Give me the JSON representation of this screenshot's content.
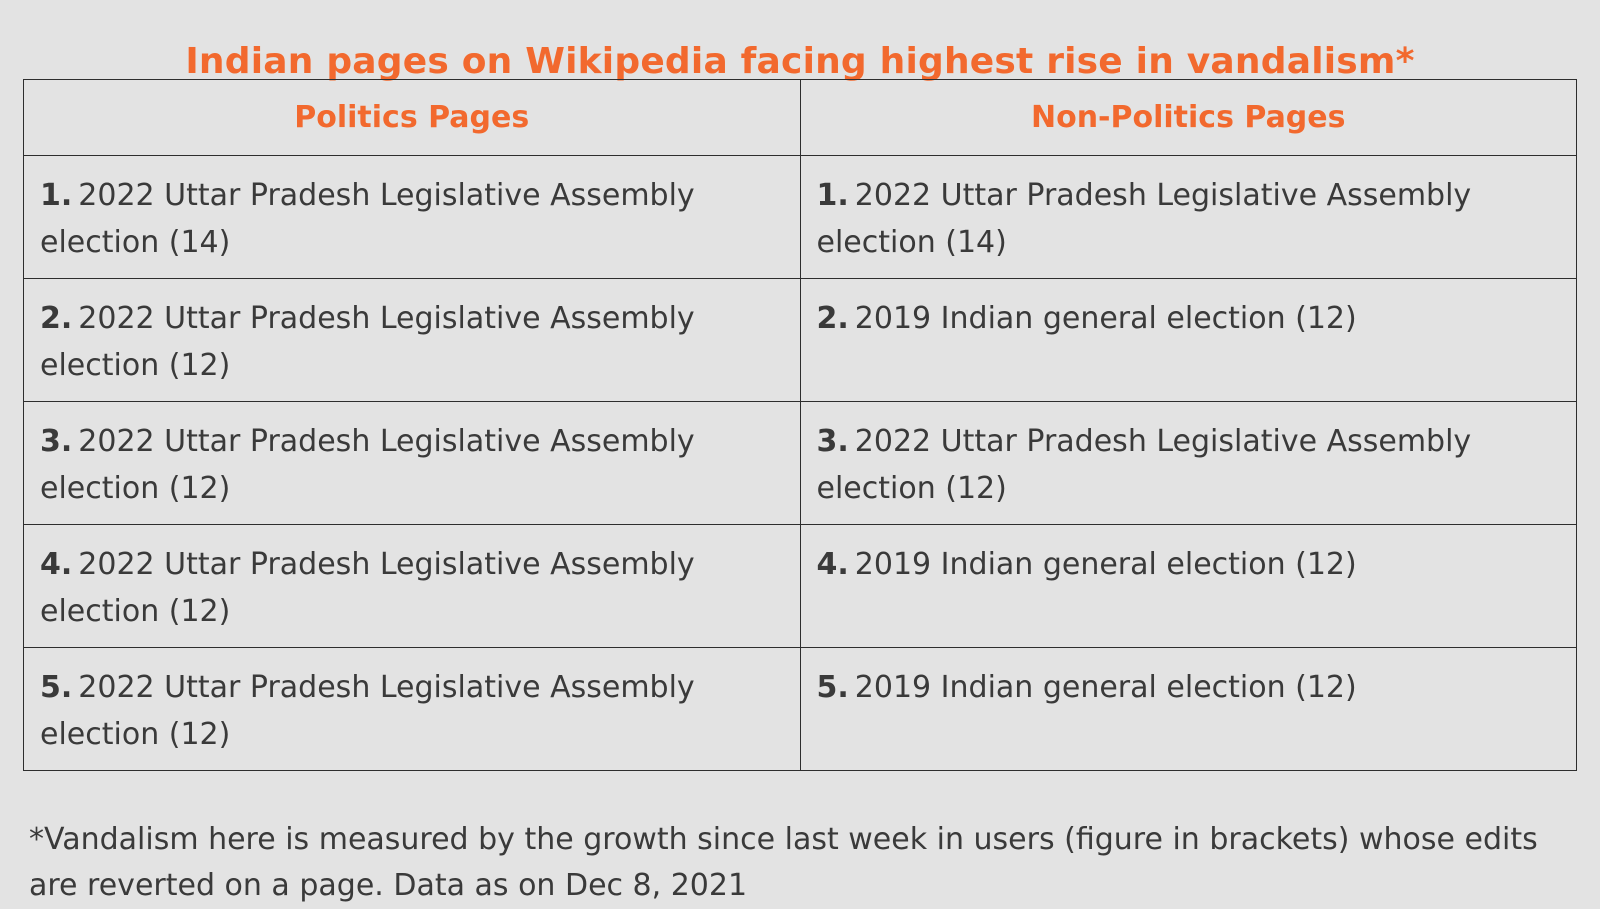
{
  "title": "Indian pages on Wikipedia facing highest rise in vandalism*",
  "table": {
    "headers": {
      "politics": "Politics Pages",
      "non_politics": "Non-Politics Pages"
    },
    "rows": [
      {
        "politics": {
          "rank": "1.",
          "text": "2022 Uttar Pradesh Legislative Assembly election (14)"
        },
        "non_politics": {
          "rank": "1.",
          "text": "2022 Uttar Pradesh Legislative Assembly election (14)"
        }
      },
      {
        "politics": {
          "rank": "2.",
          "text": "2022 Uttar Pradesh Legislative Assembly election (12)"
        },
        "non_politics": {
          "rank": "2.",
          "text": "2019 Indian general election (12)"
        }
      },
      {
        "politics": {
          "rank": "3.",
          "text": "2022 Uttar Pradesh Legislative Assembly election (12)"
        },
        "non_politics": {
          "rank": "3.",
          "text": "2022 Uttar Pradesh Legislative Assembly election (12)"
        }
      },
      {
        "politics": {
          "rank": "4.",
          "text": "2022 Uttar Pradesh Legislative Assembly election (12)"
        },
        "non_politics": {
          "rank": "4.",
          "text": "2019 Indian general election (12)"
        }
      },
      {
        "politics": {
          "rank": "5.",
          "text": "2022 Uttar Pradesh Legislative Assembly election (12)"
        },
        "non_politics": {
          "rank": "5.",
          "text": "2019 Indian general election (12)"
        }
      }
    ]
  },
  "footnote": "*Vandalism here is measured by the growth since last week in users (figure in brackets) whose edits are reverted on a page. Data as on Dec 8, 2021",
  "colors": {
    "accent": "#f2692e",
    "background": "#e3e3e3",
    "text": "#3a3a3a",
    "border": "#2e2e2e"
  }
}
